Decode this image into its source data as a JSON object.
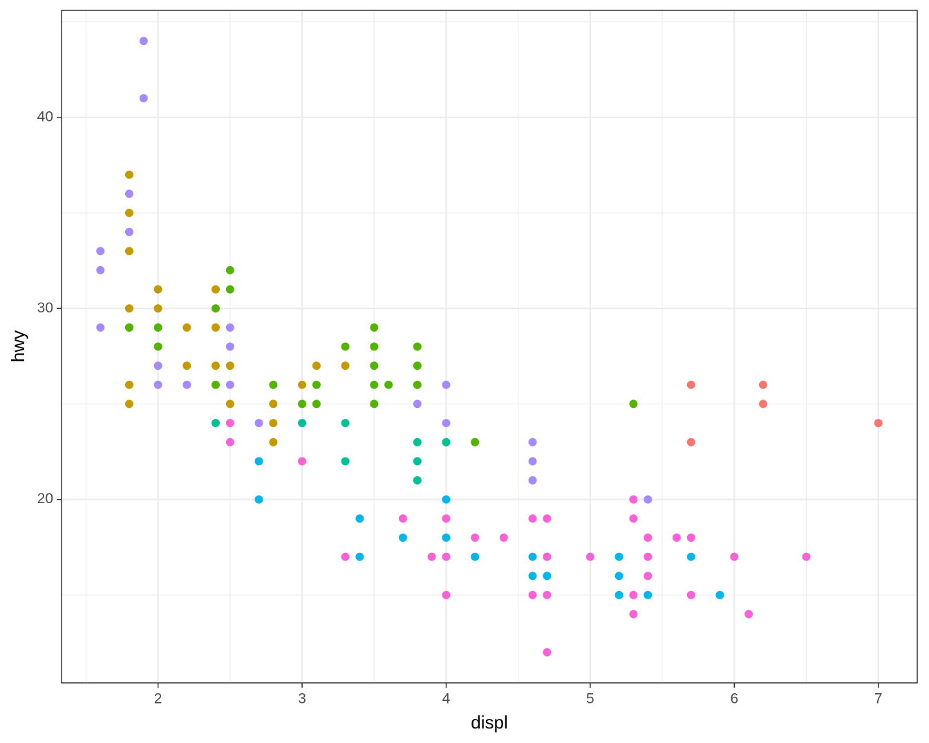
{
  "chart_data": {
    "type": "scatter",
    "x_label": "displ",
    "y_label": "hwy",
    "xlim": [
      1.33,
      7.27
    ],
    "ylim": [
      10.4,
      45.6
    ],
    "xticks": [
      2,
      3,
      4,
      5,
      6,
      7
    ],
    "yticks": [
      20,
      30,
      40
    ],
    "x_minor_ticks": [
      1.5,
      2.5,
      3.5,
      4.5,
      5.5,
      6.5
    ],
    "y_minor_ticks": [
      15,
      25,
      35,
      45
    ],
    "grid": true,
    "series": [
      {
        "color": "#F8766D",
        "x": [
          5.7,
          5.7,
          6.2,
          6.2,
          7.0
        ],
        "y": [
          26,
          23,
          26,
          25,
          24
        ]
      },
      {
        "color": "#C49A00",
        "x": [
          1.8,
          1.8,
          1.8,
          1.8,
          1.8,
          1.8,
          1.8,
          2.0,
          2.0,
          2.2,
          2.2,
          2.4,
          2.4,
          2.4,
          2.5,
          2.5,
          2.8,
          2.8,
          2.8,
          3.0,
          3.1,
          3.3
        ],
        "y": [
          37,
          35,
          33,
          30,
          29,
          26,
          25,
          31,
          30,
          29,
          27,
          31,
          29,
          27,
          27,
          25,
          25,
          24,
          23,
          26,
          27,
          27
        ]
      },
      {
        "color": "#53B400",
        "x": [
          1.8,
          2.0,
          2.0,
          2.4,
          2.4,
          2.5,
          2.5,
          2.8,
          3.0,
          3.1,
          3.1,
          3.3,
          3.5,
          3.5,
          3.5,
          3.5,
          3.5,
          3.6,
          3.8,
          3.8,
          3.8,
          4.2,
          5.3
        ],
        "y": [
          29,
          29,
          28,
          30,
          26,
          32,
          31,
          26,
          25,
          26,
          25,
          28,
          29,
          28,
          27,
          26,
          25,
          26,
          28,
          27,
          26,
          23,
          25
        ]
      },
      {
        "color": "#00C094",
        "x": [
          2.4,
          3.0,
          3.3,
          3.3,
          3.8,
          3.8,
          3.8,
          4.0
        ],
        "y": [
          24,
          24,
          24,
          22,
          23,
          22,
          21,
          23
        ]
      },
      {
        "color": "#00B6EB",
        "x": [
          2.7,
          2.7,
          3.4,
          3.4,
          3.7,
          4.0,
          4.0,
          4.2,
          4.6,
          4.6,
          4.7,
          4.7,
          5.2,
          5.2,
          5.2,
          5.4,
          5.7,
          5.9
        ],
        "y": [
          22,
          20,
          19,
          17,
          18,
          20,
          18,
          17,
          17,
          16,
          17,
          16,
          17,
          16,
          15,
          15,
          17,
          15
        ]
      },
      {
        "color": "#A58AFF",
        "x": [
          1.6,
          1.6,
          1.6,
          1.8,
          1.8,
          1.9,
          1.9,
          2.0,
          2.0,
          2.2,
          2.5,
          2.5,
          2.5,
          2.7,
          3.8,
          3.9,
          4.0,
          4.0,
          4.6,
          4.6,
          4.6,
          5.4
        ],
        "y": [
          33,
          32,
          29,
          36,
          34,
          44,
          41,
          27,
          26,
          26,
          29,
          28,
          26,
          24,
          25,
          17,
          26,
          24,
          23,
          22,
          21,
          20
        ]
      },
      {
        "color": "#FB61D7",
        "x": [
          2.5,
          2.5,
          3.0,
          3.3,
          3.7,
          3.9,
          4.0,
          4.0,
          4.0,
          4.2,
          4.4,
          4.6,
          4.6,
          4.7,
          4.7,
          4.7,
          4.7,
          5.0,
          5.3,
          5.3,
          5.3,
          5.3,
          5.4,
          5.4,
          5.4,
          5.6,
          5.7,
          5.7,
          6.0,
          6.1,
          6.5
        ],
        "y": [
          24,
          23,
          22,
          17,
          19,
          17,
          19,
          17,
          15,
          18,
          18,
          19,
          15,
          19,
          17,
          15,
          12,
          17,
          20,
          19,
          15,
          14,
          18,
          17,
          16,
          18,
          18,
          15,
          17,
          14,
          17
        ]
      }
    ]
  }
}
